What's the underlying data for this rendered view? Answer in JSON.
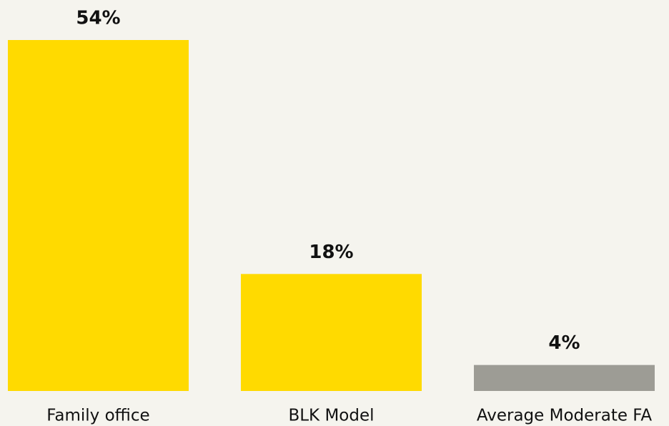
{
  "chart_data": {
    "type": "bar",
    "categories": [
      "Family office",
      "BLK Model",
      "Average Moderate FA"
    ],
    "values": [
      54,
      18,
      4
    ],
    "value_labels": [
      "54%",
      "18%",
      "4%"
    ],
    "colors": [
      "#ffda00",
      "#ffda00",
      "#9d9c95"
    ]
  }
}
